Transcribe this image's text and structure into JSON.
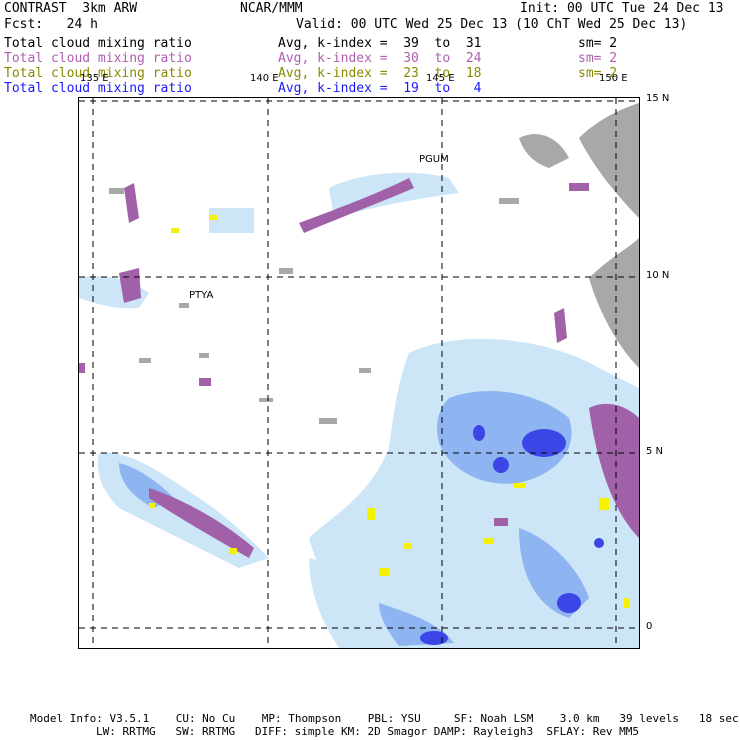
{
  "header": {
    "product": "CONTRAST  3km ARW",
    "center": "NCAR/MMM",
    "init": "Init: 00 UTC Tue 24 Dec 13",
    "fcst": "Fcst:   24 h",
    "valid": "Valid: 00 UTC Wed 25 Dec 13 (10 ChT Wed 25 Dec 13)"
  },
  "legend": [
    {
      "field": "Total cloud mixing ratio",
      "avg": "Avg, k-index =  39  to  31",
      "sm": "sm= 2",
      "color": "#000000"
    },
    {
      "field": "Total cloud mixing ratio",
      "avg": "Avg, k-index =  30  to  24",
      "sm": "sm= 2",
      "color": "#b05fb0"
    },
    {
      "field": "Total cloud mixing ratio",
      "avg": "Avg, k-index =  23  to  18",
      "sm": "sm= 2",
      "color": "#8a8a00"
    },
    {
      "field": "Total cloud mixing ratio",
      "avg": "Avg, k-index =  19  to   4",
      "sm": "",
      "color": "#1a1aff"
    }
  ],
  "map": {
    "lon_labels": [
      "135 E",
      "140 E",
      "145 E",
      "150 E"
    ],
    "lat_labels": [
      "15 N",
      "10 N",
      "5 N",
      "0"
    ],
    "stations": [
      "PGUM",
      "PTYA"
    ],
    "colors": {
      "gray": "#a8a8a8",
      "purple": "#a061a8",
      "yellow": "#f4f200",
      "light_blue": "#cde6f7",
      "mid_blue": "#8fb4f2",
      "deep_blue": "#3c46e6"
    }
  },
  "footer": {
    "line1": "Model Info: V3.5.1    CU: No Cu    MP: Thompson    PBL: YSU     SF: Noah LSM    3.0 km   39 levels   18 sec",
    "line2": "LW: RRTMG   SW: RRTMG   DIFF: simple KM: 2D Smagor DAMP: Rayleigh3  SFLAY: Rev MM5"
  }
}
